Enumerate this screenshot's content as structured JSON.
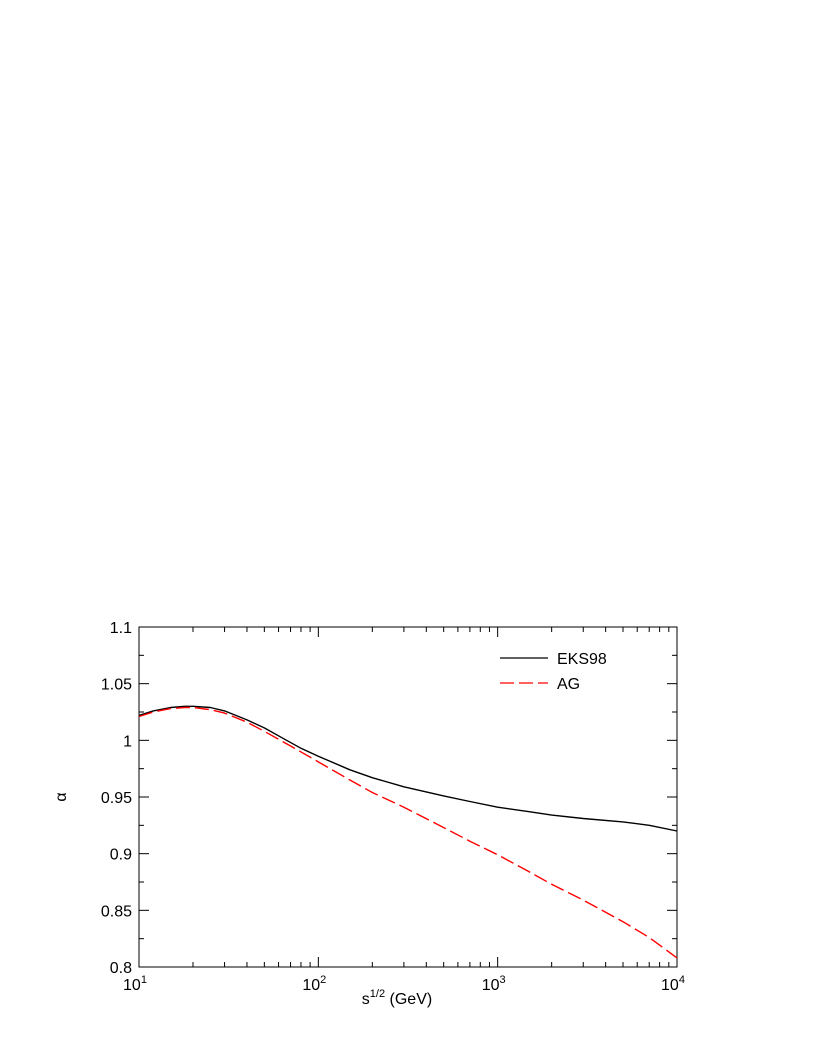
{
  "chart_data": {
    "type": "line",
    "title": "",
    "xlabel": "s^{1/2} (GeV)",
    "xlabel_base": "s",
    "xlabel_sup": "1/2",
    "xlabel_rest": " (GeV)",
    "ylabel": "α",
    "xscale": "log",
    "xlim": [
      10,
      10000
    ],
    "ylim": [
      0.8,
      1.1
    ],
    "x_ticks": [
      {
        "base": "10",
        "exp": "1"
      },
      {
        "base": "10",
        "exp": "2"
      },
      {
        "base": "10",
        "exp": "3"
      },
      {
        "base": "10",
        "exp": "4"
      }
    ],
    "y_ticks": [
      "0.8",
      "0.85",
      "0.9",
      "0.95",
      "1",
      "1.05",
      "1.1"
    ],
    "grid": false,
    "legend_position": "top-right",
    "series": [
      {
        "name": "EKS98",
        "color": "#000000",
        "dash": "solid",
        "x": [
          10,
          12,
          15,
          18,
          20,
          25,
          30,
          40,
          50,
          60,
          80,
          100,
          150,
          200,
          300,
          500,
          700,
          1000,
          1500,
          2000,
          3000,
          5000,
          7000,
          10000
        ],
        "y": [
          1.022,
          1.026,
          1.029,
          1.03,
          1.03,
          1.029,
          1.026,
          1.018,
          1.011,
          1.004,
          0.993,
          0.986,
          0.974,
          0.967,
          0.959,
          0.951,
          0.946,
          0.941,
          0.937,
          0.934,
          0.931,
          0.928,
          0.925,
          0.92
        ]
      },
      {
        "name": "AG",
        "color": "#ff0000",
        "dash": "dashed",
        "x": [
          10,
          12,
          15,
          18,
          20,
          25,
          30,
          40,
          50,
          70,
          100,
          150,
          200,
          300,
          500,
          700,
          1000,
          1500,
          2000,
          3000,
          5000,
          7000,
          10000
        ],
        "y": [
          1.021,
          1.025,
          1.028,
          1.029,
          1.029,
          1.027,
          1.024,
          1.016,
          1.008,
          0.995,
          0.981,
          0.965,
          0.954,
          0.941,
          0.923,
          0.911,
          0.899,
          0.884,
          0.873,
          0.859,
          0.84,
          0.826,
          0.808
        ]
      }
    ]
  }
}
